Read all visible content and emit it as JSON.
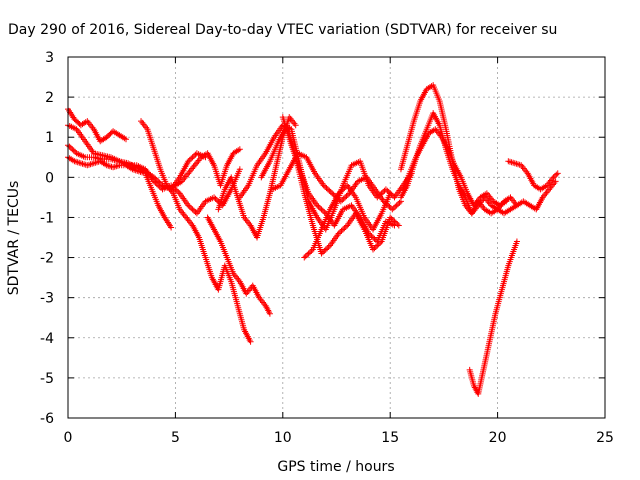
{
  "chart_data": {
    "type": "scatter",
    "title": "Day 290 of 2016, Sidereal Day-to-day VTEC variation (SDTVAR) for receiver su",
    "xlabel": "GPS time / hours",
    "ylabel": "SDTVAR / TECUs",
    "xlim": [
      0,
      25
    ],
    "ylim": [
      -6,
      3
    ],
    "x_ticks": [
      0,
      5,
      10,
      15,
      20,
      25
    ],
    "y_ticks": [
      -6,
      -5,
      -4,
      -3,
      -2,
      -1,
      0,
      1,
      2,
      3
    ],
    "x_tick_labels": [
      "0",
      "5",
      "10",
      "15",
      "20",
      "25"
    ],
    "y_tick_labels": [
      "-6",
      "-5",
      "-4",
      "-3",
      "-2",
      "-1",
      "0",
      "1",
      "2",
      "3"
    ],
    "grid": true,
    "legend": "none",
    "marker": "plus",
    "color": "#ff0000",
    "series": [
      {
        "x": [
          0.0,
          0.3,
          0.6,
          0.9,
          1.2,
          1.5,
          1.8,
          2.1,
          2.4,
          2.7
        ],
        "y": [
          1.7,
          1.45,
          1.3,
          1.4,
          1.2,
          0.9,
          1.0,
          1.15,
          1.05,
          0.95
        ]
      },
      {
        "x": [
          0.0,
          0.3,
          0.6,
          0.9,
          1.2,
          1.5,
          1.8,
          2.1,
          2.4,
          2.7,
          3.0,
          3.3,
          3.6,
          3.9,
          4.2,
          4.5,
          4.8
        ],
        "y": [
          0.5,
          0.4,
          0.35,
          0.3,
          0.35,
          0.4,
          0.3,
          0.25,
          0.3,
          0.3,
          0.2,
          0.15,
          0.1,
          -0.3,
          -0.7,
          -1.0,
          -1.25
        ]
      },
      {
        "x": [
          0.0,
          0.4,
          0.8,
          1.2,
          1.6,
          2.0,
          2.4,
          2.8,
          3.2,
          3.6,
          4.0,
          4.4,
          4.8,
          5.2,
          5.6,
          6.0,
          6.4,
          6.8,
          7.2,
          7.6,
          8.0
        ],
        "y": [
          1.3,
          1.2,
          0.9,
          0.6,
          0.55,
          0.5,
          0.4,
          0.3,
          0.3,
          0.2,
          -0.1,
          -0.3,
          -0.2,
          -0.4,
          -0.7,
          -0.9,
          -0.6,
          -0.5,
          -0.7,
          -0.3,
          0.2
        ]
      },
      {
        "x": [
          0.0,
          0.4,
          0.8,
          1.2,
          1.6,
          2.0,
          2.4,
          2.8,
          3.2,
          3.6,
          4.0,
          4.4,
          4.8,
          5.2,
          5.6,
          6.0,
          6.4
        ],
        "y": [
          0.8,
          0.6,
          0.5,
          0.5,
          0.45,
          0.45,
          0.4,
          0.35,
          0.25,
          0.15,
          0.0,
          -0.2,
          -0.3,
          0.0,
          0.4,
          0.6,
          0.5
        ]
      },
      {
        "x": [
          3.4,
          3.7,
          4.0,
          4.3,
          4.6,
          4.9,
          5.2,
          5.5,
          5.8,
          6.1,
          6.4,
          6.7,
          7.0,
          7.3,
          7.6,
          7.9,
          8.2,
          8.5
        ],
        "y": [
          1.4,
          1.2,
          0.7,
          0.2,
          -0.2,
          -0.4,
          -0.8,
          -1.0,
          -1.2,
          -1.5,
          -2.0,
          -2.5,
          -2.8,
          -2.2,
          -2.6,
          -3.2,
          -3.8,
          -4.1
        ]
      },
      {
        "x": [
          6.5,
          6.8,
          7.1,
          7.4,
          7.7,
          8.0,
          8.3,
          8.6,
          8.9,
          9.2,
          9.4
        ],
        "y": [
          -1.0,
          -1.3,
          -1.6,
          -2.0,
          -2.4,
          -2.6,
          -2.9,
          -2.7,
          -3.0,
          -3.2,
          -3.4
        ]
      },
      {
        "x": [
          5.0,
          5.3,
          5.6,
          5.9,
          6.2,
          6.5,
          6.8,
          7.1,
          7.4,
          7.7,
          8.0
        ],
        "y": [
          -0.2,
          -0.1,
          0.1,
          0.3,
          0.5,
          0.6,
          0.3,
          -0.2,
          0.3,
          0.6,
          0.7
        ]
      },
      {
        "x": [
          7.0,
          7.3,
          7.6,
          7.9,
          8.2,
          8.5,
          8.8,
          9.1,
          9.4,
          9.7,
          10.0,
          10.3,
          10.6
        ],
        "y": [
          -0.8,
          -0.3,
          0.0,
          -0.5,
          -1.0,
          -1.2,
          -1.5,
          -1.0,
          -0.4,
          0.3,
          1.0,
          1.5,
          1.3
        ]
      },
      {
        "x": [
          8.0,
          8.4,
          8.8,
          9.2,
          9.6,
          10.0,
          10.4,
          10.8,
          11.2,
          11.6,
          12.0,
          12.4,
          12.8,
          13.2,
          13.6,
          14.0,
          14.4,
          14.8,
          15.2,
          15.6,
          16.0
        ],
        "y": [
          -0.5,
          -0.2,
          0.3,
          0.6,
          1.0,
          1.3,
          1.2,
          0.3,
          -0.6,
          -1.0,
          -1.3,
          -0.8,
          -0.2,
          0.3,
          0.4,
          -0.2,
          -0.5,
          -0.3,
          -0.5,
          -0.2,
          0.1
        ]
      },
      {
        "x": [
          9.0,
          9.4,
          9.8,
          10.2,
          10.6,
          11.0,
          11.4,
          11.8,
          12.2,
          12.6,
          13.0,
          13.4,
          13.8,
          14.2,
          14.6,
          15.0,
          15.4
        ],
        "y": [
          0.0,
          0.4,
          0.9,
          1.3,
          0.5,
          -0.4,
          -1.2,
          -1.9,
          -1.7,
          -1.4,
          -1.2,
          -0.9,
          -1.3,
          -1.8,
          -1.6,
          -1.0,
          -1.2
        ]
      },
      {
        "x": [
          9.5,
          9.9,
          10.3,
          10.7,
          11.1,
          11.5,
          11.9,
          12.3,
          12.7,
          13.1,
          13.5,
          13.9,
          14.3,
          14.7,
          15.1,
          15.5
        ],
        "y": [
          -0.3,
          -0.2,
          0.2,
          0.6,
          0.5,
          0.1,
          -0.2,
          -0.4,
          -0.6,
          -0.4,
          -0.1,
          0.0,
          -0.3,
          -0.6,
          -0.8,
          -0.6
        ]
      },
      {
        "x": [
          10.0,
          10.4,
          10.8,
          11.2,
          11.6,
          12.0,
          12.4,
          12.8,
          13.2,
          13.6,
          14.0,
          14.4,
          14.8,
          15.2
        ],
        "y": [
          1.5,
          0.8,
          0.2,
          -0.4,
          -0.7,
          -0.9,
          -1.2,
          -0.8,
          -0.7,
          -1.0,
          -1.4,
          -1.6,
          -1.1,
          -1.2
        ]
      },
      {
        "x": [
          11.0,
          11.4,
          11.8,
          12.2,
          12.6,
          13.0,
          13.4,
          13.8,
          14.2,
          14.6,
          15.0
        ],
        "y": [
          -2.0,
          -1.8,
          -1.3,
          -0.8,
          -0.4,
          -0.2,
          -0.5,
          -1.0,
          -1.3,
          -0.9,
          -0.4
        ]
      },
      {
        "x": [
          15.5,
          15.8,
          16.1,
          16.4,
          16.7,
          17.0,
          17.3,
          17.6,
          17.9,
          18.2,
          18.5,
          18.8,
          19.1,
          19.4,
          19.7,
          20.0,
          20.3,
          20.6,
          20.9,
          21.2,
          21.5,
          21.8,
          22.1,
          22.4,
          22.7
        ],
        "y": [
          0.2,
          0.8,
          1.4,
          1.9,
          2.2,
          2.3,
          1.9,
          1.2,
          0.4,
          -0.3,
          -0.7,
          -0.9,
          -0.6,
          -0.8,
          -0.9,
          -0.8,
          -0.6,
          -0.5,
          -0.7,
          -0.6,
          -0.7,
          -0.8,
          -0.5,
          -0.3,
          -0.1
        ]
      },
      {
        "x": [
          15.5,
          15.8,
          16.1,
          16.4,
          16.7,
          17.0,
          17.3,
          17.6,
          17.9,
          18.2,
          18.5,
          18.8,
          19.1,
          19.4,
          19.7,
          20.0,
          20.3,
          20.6,
          20.9
        ],
        "y": [
          -0.5,
          -0.2,
          0.3,
          0.8,
          1.2,
          1.6,
          1.3,
          0.7,
          0.2,
          -0.2,
          -0.5,
          -0.9,
          -0.7,
          -0.5,
          -0.7,
          -0.8,
          -0.9,
          -0.8,
          -0.7
        ]
      },
      {
        "x": [
          15.6,
          15.9,
          16.2,
          16.5,
          16.8,
          17.1,
          17.4,
          17.7,
          18.0,
          18.3,
          18.6,
          18.9,
          19.2,
          19.5,
          19.8,
          20.1,
          20.4
        ],
        "y": [
          -0.3,
          0.1,
          0.5,
          0.8,
          1.1,
          1.2,
          1.0,
          0.7,
          0.3,
          0.0,
          -0.4,
          -0.7,
          -0.5,
          -0.4,
          -0.6,
          -0.7,
          -0.6
        ]
      },
      {
        "x": [
          18.7,
          18.9,
          19.1,
          19.3,
          19.5,
          19.7,
          19.9,
          20.1,
          20.3,
          20.5,
          20.7,
          20.9
        ],
        "y": [
          -4.8,
          -5.2,
          -5.4,
          -4.9,
          -4.4,
          -3.9,
          -3.4,
          -3.0,
          -2.6,
          -2.2,
          -1.9,
          -1.6
        ]
      },
      {
        "x": [
          20.5,
          20.8,
          21.1,
          21.4,
          21.7,
          22.0,
          22.3,
          22.6,
          22.8
        ],
        "y": [
          0.4,
          0.35,
          0.3,
          0.1,
          -0.2,
          -0.3,
          -0.2,
          0.0,
          0.1
        ]
      }
    ]
  }
}
